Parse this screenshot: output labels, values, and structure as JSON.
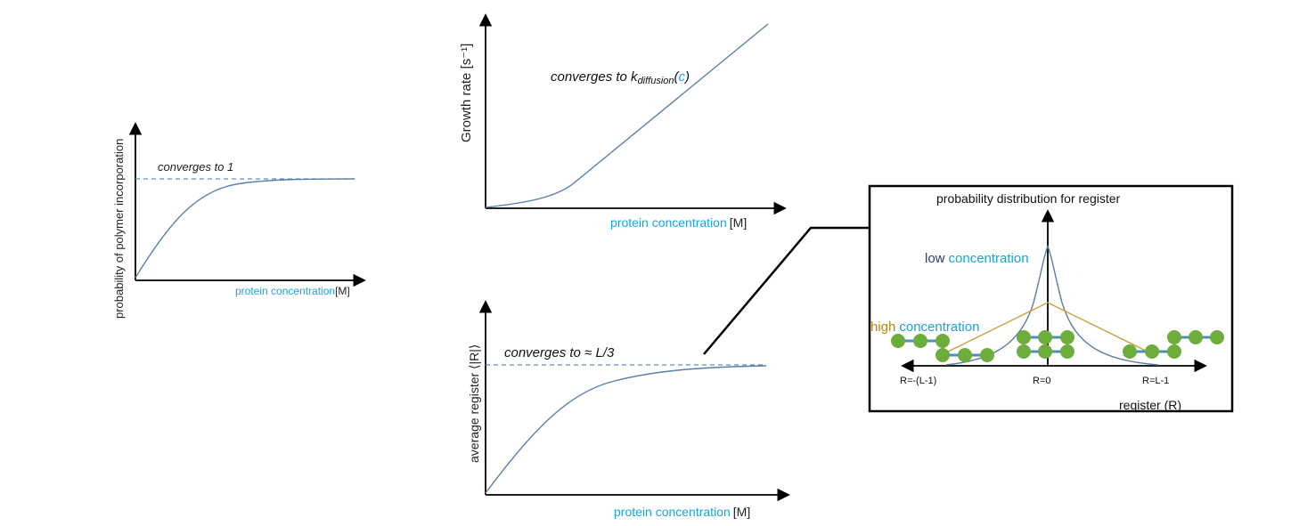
{
  "panel_left": {
    "ylabel": "probability of polymer incorporation",
    "xlabel_cyan": "protein concentration",
    "xlabel_unit": "[M]",
    "annotation": "converges to 1"
  },
  "panel_top": {
    "ylabel": "Growth rate [s⁻¹]",
    "xlabel_cyan": "protein concentration",
    "xlabel_unit": "[M]",
    "annotation_prefix": "converges to k",
    "annotation_sub": "diffusion",
    "annotation_paren_open": "(",
    "annotation_arg": "c",
    "annotation_paren_close": ")"
  },
  "panel_bottom": {
    "ylabel": "average register ⟨|R|⟩",
    "xlabel_cyan": "protein concentration",
    "xlabel_unit": "[M]",
    "annotation": "converges to ≈ L/3"
  },
  "inset": {
    "title": "probability distribution for register",
    "low_word": "low",
    "low_conc": "concentration",
    "high_word": "high",
    "high_conc": "concentration",
    "tick_left": "R=-(L-1)",
    "tick_mid": "R=0",
    "tick_right": "R=L-1",
    "xlabel": "register (R)"
  },
  "colors": {
    "cyan_text": "#1aa3d9",
    "curve": "#5b7fa8",
    "dashed": "#5b8fc8",
    "gold": "#c8a040",
    "bead": "#6cad3c",
    "strand": "#4a90c0"
  },
  "icons": {
    "axis_arrow": "arrowhead"
  }
}
